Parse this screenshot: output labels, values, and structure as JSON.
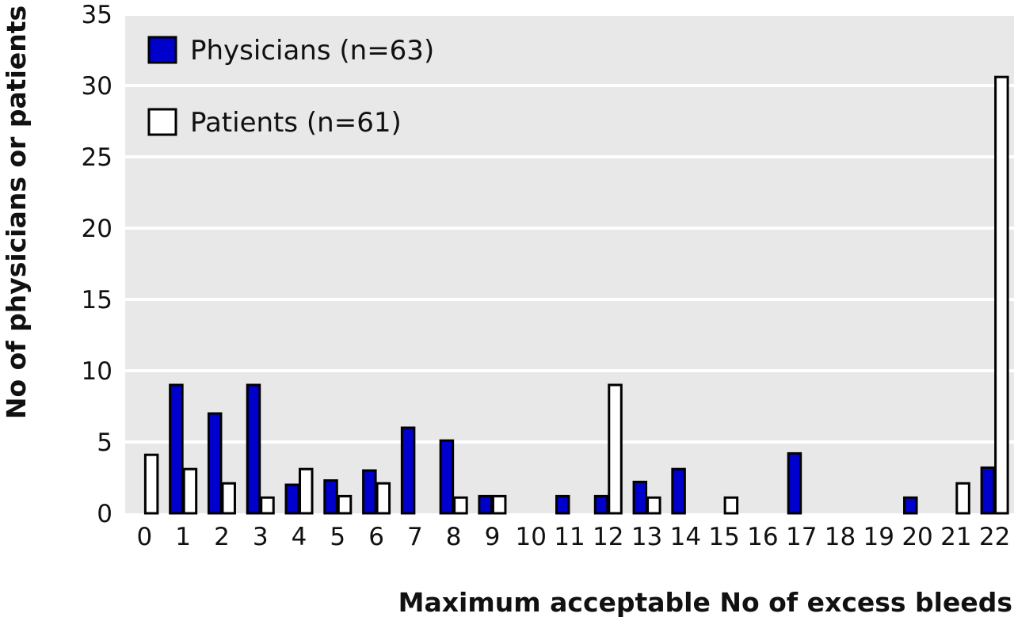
{
  "chart_data": {
    "type": "bar",
    "xlabel": "Maximum acceptable No of excess bleeds",
    "ylabel": "No of physicians or patients",
    "ylim": [
      0,
      35
    ],
    "yticks": [
      "0",
      "5",
      "10",
      "15",
      "20",
      "25",
      "30",
      "35"
    ],
    "categories": [
      "0",
      "1",
      "2",
      "3",
      "4",
      "5",
      "6",
      "7",
      "8",
      "9",
      "10",
      "11",
      "12",
      "13",
      "14",
      "15",
      "16",
      "17",
      "18",
      "19",
      "20",
      "21",
      "22"
    ],
    "series": [
      {
        "name": "Physicians (n=63)",
        "color": "#0000cc",
        "values": [
          0,
          9,
          7,
          9,
          2,
          2.3,
          3,
          6,
          5.1,
          1.2,
          0,
          1.2,
          1.2,
          2.2,
          3.1,
          0,
          0,
          4.2,
          0,
          0,
          1.1,
          0,
          3.2
        ]
      },
      {
        "name": "Patients (n=61)",
        "color": "#ffffff",
        "values": [
          4.1,
          3.1,
          2.1,
          1.1,
          3.1,
          1.2,
          2.1,
          0,
          1.1,
          1.2,
          0,
          0,
          9,
          1.1,
          0,
          1.1,
          0,
          0,
          0,
          0,
          0,
          2.1,
          30.6
        ]
      }
    ],
    "grid": true,
    "background": "#e8e8e8",
    "legend_position": "top-left"
  }
}
